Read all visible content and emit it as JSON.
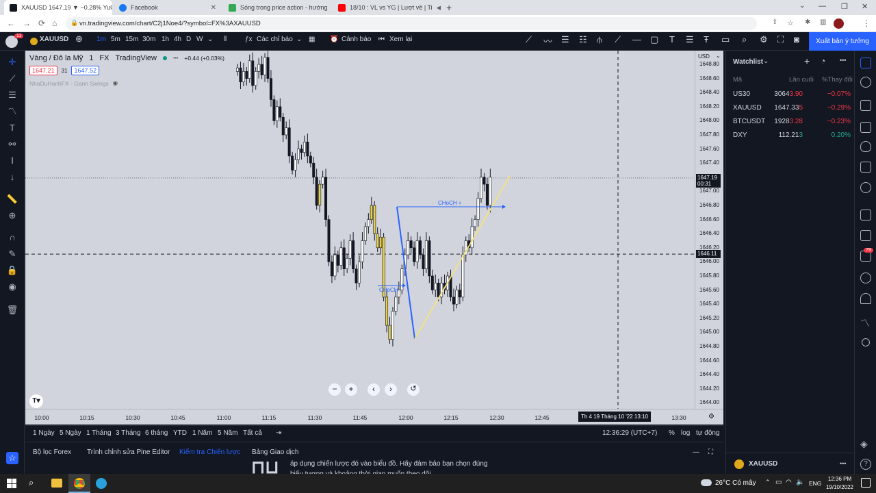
{
  "browser": {
    "tabs": [
      {
        "label": "XAUUSD 1647.19 ▼ −0.28% YuG",
        "favcolor": "#131722"
      },
      {
        "label": "Facebook",
        "favcolor": "#1877f2"
      },
      {
        "label": "Sóng trong price action - hướng",
        "favcolor": "#34a853"
      },
      {
        "label": "18/10 : VL vs YG | Lượt về | Ti",
        "favcolor": "#ff0000"
      }
    ],
    "url": "vn.tradingview.com/chart/C2j1Noe4/?symbol=FX%3AXAUUSD"
  },
  "toolbar": {
    "notif_count": "11",
    "symbol": "XAUUSD",
    "intervals": [
      "1m",
      "5m",
      "15m",
      "30m",
      "1h",
      "4h",
      "D",
      "W"
    ],
    "active_interval": "1m",
    "indicators": "Các chỉ báo",
    "alert": "Cảnh báo",
    "replay": "Xem lại",
    "publish": "Xuất bản ý tưởng"
  },
  "legend": {
    "title": "Vàng / Đô la Mỹ",
    "interval": "1",
    "exchange": "FX",
    "source": "TradingView",
    "change": "+0.44 (+0.03%)",
    "bid": "1647.21",
    "spread": "31",
    "ask": "1647.52",
    "indicator": "NhaDuHanhFX - Gann Swings"
  },
  "chart_data": {
    "type": "candlestick",
    "currency": "USD",
    "y_ticks": [
      "1648.80",
      "1648.60",
      "1648.40",
      "1648.20",
      "1648.00",
      "1647.80",
      "1647.60",
      "1647.40",
      "1647.20",
      "1647.00",
      "1646.80",
      "1646.60",
      "1646.40",
      "1646.20",
      "1646.00",
      "1645.80",
      "1645.60",
      "1645.40",
      "1645.20",
      "1645.00",
      "1644.80",
      "1644.60",
      "1644.40",
      "1644.20",
      "1644.00"
    ],
    "x_ticks": [
      "10:00",
      "10:15",
      "10:30",
      "10:45",
      "11:00",
      "11:15",
      "11:30",
      "11:45",
      "12:00",
      "12:15",
      "12:30",
      "12:45",
      "13:30"
    ],
    "crosshair_time": "Th 4 19 Tháng 10 '22",
    "crosshair_clock": "13:10",
    "last_price": "1647.19",
    "countdown": "00:31",
    "crosshair_price": "1646.11",
    "annotations": [
      "CHoCH +",
      "CHoCH -"
    ]
  },
  "ranges": {
    "items": [
      "1 Ngày",
      "5 Ngày",
      "1 Tháng",
      "3 Tháng",
      "6 tháng",
      "YTD",
      "1 Năm",
      "5 Năm",
      "Tất cả"
    ],
    "clock": "12:36:29 (UTC+7)",
    "percent": "%",
    "log": "log",
    "auto": "tự động"
  },
  "bottom_tabs": {
    "items": [
      "Bộ lọc Forex",
      "Trình chỉnh sửa Pine Editor",
      "Kiểm tra Chiến lược",
      "Bảng Giao dịch"
    ],
    "active_index": 2,
    "overlay_line1": "áp dụng chiến lược đó vào biểu đồ. Hãy đảm bảo bạn chọn đúng",
    "overlay_line2": "biểu tượng và khoảng thời gian muốn theo dõi."
  },
  "watchlist": {
    "title": "Watchlist",
    "col_symbol": "Mã",
    "col_last": "Lần cuối",
    "col_change": "%Thay đổi",
    "rows": [
      {
        "symbol": "US30",
        "last_a": "3064",
        "last_b": "3.90",
        "change": "−0.07%",
        "positive": false
      },
      {
        "symbol": "XAUUSD",
        "last_a": "1647.33",
        "last_b": "5",
        "change": "−0.29%",
        "positive": false
      },
      {
        "symbol": "BTCUSDT",
        "last_a": "1928",
        "last_b": "3.28",
        "change": "−0.23%",
        "positive": false
      },
      {
        "symbol": "DXY",
        "last_a": "112.21",
        "last_b": "3",
        "change": "0.20%",
        "positive": true
      }
    ],
    "bottom_symbol": "XAUUSD",
    "badge": "79"
  },
  "taskbar": {
    "weather": "26°C  Có mây",
    "lang": "ENG",
    "time": "12:36 PM",
    "date": "19/10/2022"
  }
}
